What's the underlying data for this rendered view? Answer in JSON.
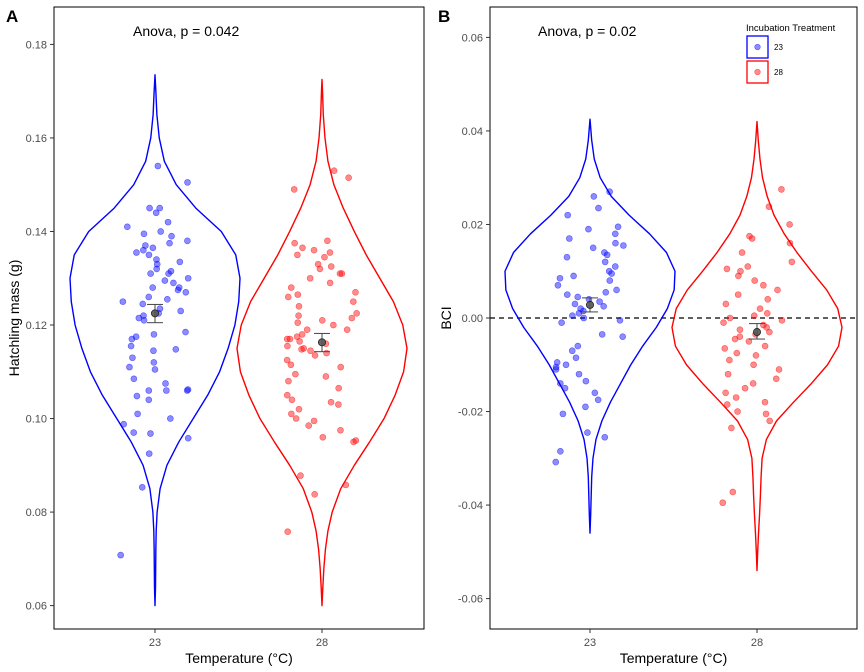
{
  "chart_data": [
    {
      "type": "violin",
      "panel_label": "A",
      "annotation": "Anova, p = 0.042",
      "xlabel": "Temperature (°C)",
      "ylabel": "Hatchling mass (g)",
      "ylim": [
        0.055,
        0.188
      ],
      "yticks": [
        0.06,
        0.08,
        0.1,
        0.12,
        0.14,
        0.16,
        0.18
      ],
      "ytick_labels": [
        "0.06",
        "0.08",
        "0.10",
        "0.12",
        "0.14",
        "0.16",
        "0.18"
      ],
      "categories": [
        "23",
        "28"
      ],
      "grid": false,
      "series": [
        {
          "group": "23",
          "color": "#0000ff",
          "mean": 0.1225,
          "ci": [
            0.1205,
            0.1244
          ],
          "violin": {
            "y_min": 0.06,
            "y_max": 0.1735,
            "profile": [
              [
                0.06,
                0.0
              ],
              [
                0.064,
                0.006
              ],
              [
                0.068,
                0.008
              ],
              [
                0.072,
                0.01
              ],
              [
                0.076,
                0.014
              ],
              [
                0.08,
                0.025
              ],
              [
                0.085,
                0.06
              ],
              [
                0.09,
                0.14
              ],
              [
                0.095,
                0.28
              ],
              [
                0.1,
                0.45
              ],
              [
                0.105,
                0.62
              ],
              [
                0.11,
                0.76
              ],
              [
                0.115,
                0.86
              ],
              [
                0.12,
                0.94
              ],
              [
                0.125,
                0.985
              ],
              [
                0.13,
                1.0
              ],
              [
                0.135,
                0.95
              ],
              [
                0.14,
                0.78
              ],
              [
                0.145,
                0.48
              ],
              [
                0.15,
                0.25
              ],
              [
                0.155,
                0.11
              ],
              [
                0.16,
                0.05
              ],
              [
                0.165,
                0.022
              ],
              [
                0.17,
                0.01
              ],
              [
                0.1735,
                0.0
              ]
            ]
          },
          "points": [
            0.0708,
            0.0853,
            0.0925,
            0.0958,
            0.0968,
            0.097,
            0.0988,
            0.1,
            0.101,
            0.104,
            0.1048,
            0.106,
            0.106,
            0.106,
            0.1062,
            0.1075,
            0.1085,
            0.1105,
            0.111,
            0.112,
            0.113,
            0.1145,
            0.1148,
            0.1155,
            0.117,
            0.1175,
            0.118,
            0.1185,
            0.121,
            0.1215,
            0.122,
            0.1225,
            0.123,
            0.1235,
            0.1245,
            0.125,
            0.1255,
            0.126,
            0.127,
            0.1275,
            0.128,
            0.128,
            0.129,
            0.1295,
            0.13,
            0.131,
            0.131,
            0.1315,
            0.132,
            0.133,
            0.1335,
            0.134,
            0.135,
            0.1355,
            0.136,
            0.1365,
            0.137,
            0.1375,
            0.138,
            0.139,
            0.1395,
            0.14,
            0.141,
            0.142,
            0.144,
            0.145,
            0.145,
            0.1505,
            0.154
          ]
        },
        {
          "group": "28",
          "color": "#ff0000",
          "mean": 0.1163,
          "ci": [
            0.1143,
            0.1182
          ],
          "violin": {
            "y_min": 0.06,
            "y_max": 0.1725,
            "profile": [
              [
                0.06,
                0.0
              ],
              [
                0.064,
                0.01
              ],
              [
                0.068,
                0.022
              ],
              [
                0.072,
                0.04
              ],
              [
                0.076,
                0.07
              ],
              [
                0.08,
                0.12
              ],
              [
                0.085,
                0.22
              ],
              [
                0.09,
                0.38
              ],
              [
                0.095,
                0.56
              ],
              [
                0.1,
                0.73
              ],
              [
                0.105,
                0.86
              ],
              [
                0.11,
                0.96
              ],
              [
                0.115,
                1.0
              ],
              [
                0.12,
                0.95
              ],
              [
                0.125,
                0.84
              ],
              [
                0.13,
                0.68
              ],
              [
                0.135,
                0.52
              ],
              [
                0.14,
                0.38
              ],
              [
                0.145,
                0.25
              ],
              [
                0.15,
                0.14
              ],
              [
                0.155,
                0.07
              ],
              [
                0.16,
                0.035
              ],
              [
                0.165,
                0.015
              ],
              [
                0.17,
                0.006
              ],
              [
                0.1725,
                0.0
              ]
            ]
          },
          "points": [
            0.0758,
            0.0838,
            0.0858,
            0.0878,
            0.095,
            0.0953,
            0.096,
            0.0975,
            0.0985,
            0.0995,
            0.1,
            0.101,
            0.102,
            0.103,
            0.1035,
            0.104,
            0.105,
            0.1065,
            0.108,
            0.109,
            0.1095,
            0.111,
            0.1115,
            0.1125,
            0.1135,
            0.114,
            0.1145,
            0.1148,
            0.115,
            0.1155,
            0.116,
            0.1165,
            0.117,
            0.117,
            0.1175,
            0.118,
            0.119,
            0.119,
            0.12,
            0.1205,
            0.121,
            0.1215,
            0.122,
            0.1225,
            0.124,
            0.125,
            0.126,
            0.1265,
            0.127,
            0.128,
            0.129,
            0.13,
            0.131,
            0.131,
            0.132,
            0.1325,
            0.133,
            0.1345,
            0.135,
            0.1355,
            0.136,
            0.1365,
            0.1375,
            0.138,
            0.149,
            0.1515,
            0.153
          ]
        }
      ]
    },
    {
      "type": "violin",
      "panel_label": "B",
      "annotation": "Anova, p = 0.02",
      "xlabel": "Temperature (°C)",
      "ylabel": "BCI",
      "ylim": [
        -0.0665,
        0.0665
      ],
      "yticks": [
        -0.06,
        -0.04,
        -0.02,
        0.0,
        0.02,
        0.04,
        0.06
      ],
      "ytick_labels": [
        "-0.06",
        "-0.04",
        "-0.02",
        "0.00",
        "0.02",
        "0.04",
        "0.06"
      ],
      "categories": [
        "23",
        "28"
      ],
      "grid": false,
      "reference_line": 0,
      "series": [
        {
          "group": "23",
          "color": "#0000ff",
          "mean": 0.0028,
          "ci": [
            0.0013,
            0.0043
          ],
          "violin": {
            "y_min": -0.046,
            "y_max": 0.0425,
            "profile": [
              [
                -0.046,
                0.0
              ],
              [
                -0.042,
                0.008
              ],
              [
                -0.038,
                0.014
              ],
              [
                -0.034,
                0.02
              ],
              [
                -0.03,
                0.035
              ],
              [
                -0.026,
                0.07
              ],
              [
                -0.022,
                0.14
              ],
              [
                -0.018,
                0.24
              ],
              [
                -0.014,
                0.36
              ],
              [
                -0.01,
                0.48
              ],
              [
                -0.006,
                0.62
              ],
              [
                -0.002,
                0.78
              ],
              [
                0.002,
                0.91
              ],
              [
                0.006,
                0.99
              ],
              [
                0.01,
                1.0
              ],
              [
                0.014,
                0.9
              ],
              [
                0.018,
                0.7
              ],
              [
                0.022,
                0.46
              ],
              [
                0.026,
                0.25
              ],
              [
                0.03,
                0.12
              ],
              [
                0.034,
                0.05
              ],
              [
                0.038,
                0.02
              ],
              [
                0.0425,
                0.0
              ]
            ]
          },
          "points": [
            -0.0308,
            -0.0285,
            -0.0255,
            -0.0245,
            -0.0205,
            -0.019,
            -0.0175,
            -0.016,
            -0.015,
            -0.014,
            -0.0135,
            -0.012,
            -0.011,
            -0.0105,
            -0.01,
            -0.0095,
            -0.0085,
            -0.007,
            -0.006,
            -0.004,
            -0.0035,
            -0.001,
            -0.0005,
            0.0,
            0.0005,
            0.001,
            0.0015,
            0.002,
            0.0025,
            0.003,
            0.0035,
            0.004,
            0.0045,
            0.005,
            0.0055,
            0.006,
            0.007,
            0.008,
            0.0085,
            0.009,
            0.0095,
            0.01,
            0.011,
            0.012,
            0.013,
            0.0135,
            0.014,
            0.015,
            0.0155,
            0.016,
            0.017,
            0.018,
            0.019,
            0.0195,
            0.022,
            0.0235,
            0.026,
            0.027
          ]
        },
        {
          "group": "28",
          "color": "#ff0000",
          "mean": -0.003,
          "ci": [
            -0.0045,
            -0.0012
          ],
          "violin": {
            "y_min": -0.054,
            "y_max": 0.042,
            "profile": [
              [
                -0.054,
                0.0
              ],
              [
                -0.05,
                0.008
              ],
              [
                -0.046,
                0.018
              ],
              [
                -0.042,
                0.03
              ],
              [
                -0.038,
                0.04
              ],
              [
                -0.034,
                0.048
              ],
              [
                -0.03,
                0.06
              ],
              [
                -0.026,
                0.11
              ],
              [
                -0.022,
                0.23
              ],
              [
                -0.018,
                0.43
              ],
              [
                -0.014,
                0.64
              ],
              [
                -0.01,
                0.83
              ],
              [
                -0.006,
                0.96
              ],
              [
                -0.002,
                1.0
              ],
              [
                0.002,
                0.95
              ],
              [
                0.006,
                0.82
              ],
              [
                0.01,
                0.64
              ],
              [
                0.014,
                0.47
              ],
              [
                0.018,
                0.32
              ],
              [
                0.022,
                0.2
              ],
              [
                0.026,
                0.12
              ],
              [
                0.03,
                0.065
              ],
              [
                0.034,
                0.035
              ],
              [
                0.038,
                0.015
              ],
              [
                0.042,
                0.0
              ]
            ]
          },
          "points": [
            -0.0395,
            -0.0372,
            -0.0235,
            -0.022,
            -0.0205,
            -0.02,
            -0.0185,
            -0.018,
            -0.017,
            -0.016,
            -0.015,
            -0.014,
            -0.013,
            -0.012,
            -0.011,
            -0.01,
            -0.009,
            -0.008,
            -0.0075,
            -0.0065,
            -0.006,
            -0.005,
            -0.0045,
            -0.004,
            -0.0035,
            -0.003,
            -0.0025,
            -0.002,
            -0.0015,
            -0.001,
            -0.0005,
            0.0,
            0.0005,
            0.001,
            0.002,
            0.003,
            0.004,
            0.005,
            0.006,
            0.007,
            0.008,
            0.009,
            0.01,
            0.0105,
            0.011,
            0.012,
            0.014,
            0.016,
            0.017,
            0.0175,
            0.02,
            0.0238,
            0.0275
          ]
        }
      ]
    }
  ],
  "legend": {
    "title": "Incubation Treatment",
    "placement": "top-right",
    "items": [
      {
        "label": "23",
        "color": "#0000ff"
      },
      {
        "label": "28",
        "color": "#ff0000"
      }
    ]
  }
}
